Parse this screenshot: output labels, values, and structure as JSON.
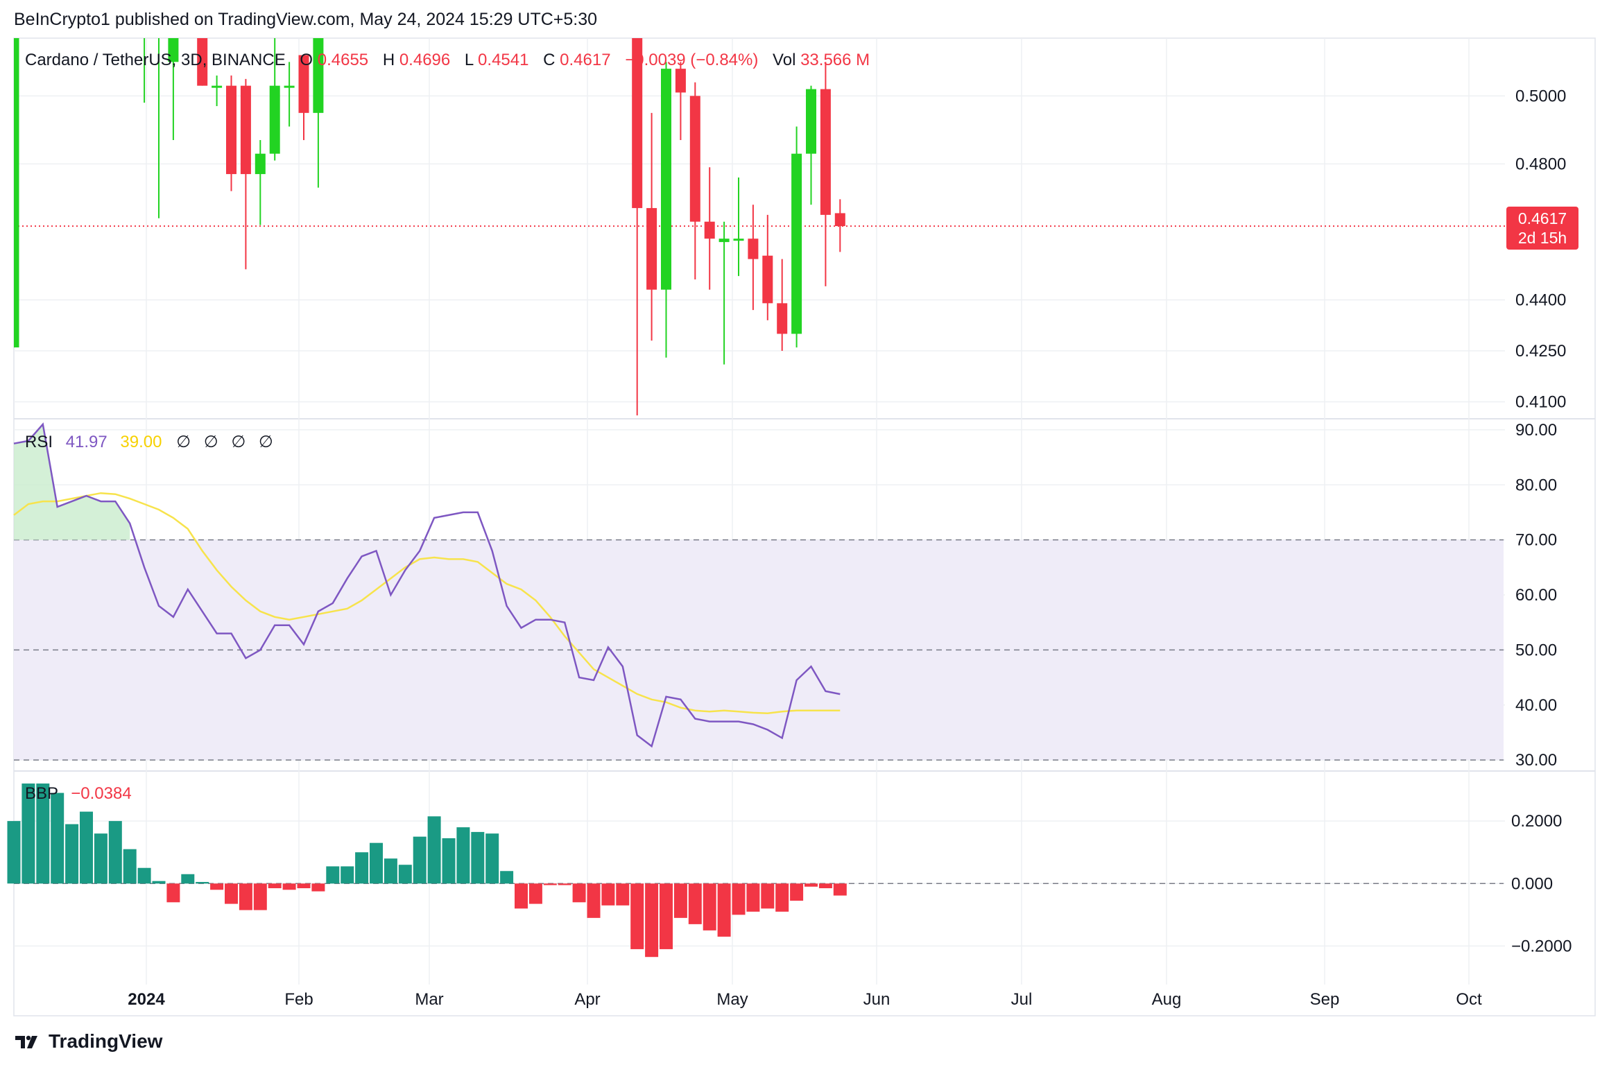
{
  "header": {
    "published_line": "BeInCrypto1 published on TradingView.com, May 24, 2024 15:29 UTC+5:30"
  },
  "legend": {
    "symbol": "Cardano / TetherUS, 3D, BINANCE",
    "o_label": "O",
    "o_value": "0.4655",
    "h_label": "H",
    "h_value": "0.4696",
    "l_label": "L",
    "l_value": "0.4541",
    "c_label": "C",
    "c_value": "0.4617",
    "change": "−0.0039 (−0.84%)",
    "vol_label": "Vol",
    "vol_value": "33.566 M"
  },
  "price_label": {
    "value": "0.4617",
    "countdown": "2d 15h"
  },
  "rsi_legend": {
    "name": "RSI",
    "value": "41.97",
    "ma_value": "39.00",
    "extras": [
      "∅",
      "∅",
      "∅",
      "∅"
    ]
  },
  "bbp_legend": {
    "name": "BBP",
    "value": "−0.0384"
  },
  "footer": {
    "brand": "TradingView"
  },
  "colors": {
    "up": "#22d322",
    "down": "#f23645",
    "rsi_line": "#7e57c2",
    "rsi_ma": "#f7e34c",
    "bbp_up": "#1a9a84",
    "bbp_down": "#f23645",
    "band_fill": "#efecf8",
    "grid": "#eef0f3"
  },
  "chart_data": [
    {
      "type": "candlestick",
      "title": "Cardano / TetherUS, 3D, BINANCE",
      "x_ticks": [
        "2024",
        "Feb",
        "Mar",
        "Apr",
        "May",
        "Jun",
        "Jul",
        "Aug",
        "Sep",
        "Oct"
      ],
      "y_ticks": [
        "0.5000",
        "0.4800",
        "0.4400",
        "0.4250",
        "0.4100"
      ],
      "ylim": [
        0.405,
        0.517
      ],
      "current_price": 0.4617,
      "candles": [
        {
          "x": 0,
          "o": 0.426,
          "h": 0.52,
          "l": 0.426,
          "c": 0.52
        },
        {
          "x": 9,
          "o": 0.52,
          "h": 0.52,
          "l": 0.498,
          "c": 0.52
        },
        {
          "x": 10,
          "o": 0.52,
          "h": 0.52,
          "l": 0.464,
          "c": 0.52
        },
        {
          "x": 11,
          "o": 0.51,
          "h": 0.52,
          "l": 0.487,
          "c": 0.52
        },
        {
          "x": 13,
          "o": 0.52,
          "h": 0.52,
          "l": 0.503,
          "c": 0.503
        },
        {
          "x": 14,
          "o": 0.503,
          "h": 0.506,
          "l": 0.497,
          "c": 0.503
        },
        {
          "x": 15,
          "o": 0.503,
          "h": 0.506,
          "l": 0.472,
          "c": 0.477
        },
        {
          "x": 16,
          "o": 0.503,
          "h": 0.505,
          "l": 0.449,
          "c": 0.477
        },
        {
          "x": 17,
          "o": 0.477,
          "h": 0.487,
          "l": 0.462,
          "c": 0.483
        },
        {
          "x": 18,
          "o": 0.483,
          "h": 0.519,
          "l": 0.481,
          "c": 0.503
        },
        {
          "x": 19,
          "o": 0.503,
          "h": 0.51,
          "l": 0.491,
          "c": 0.503
        },
        {
          "x": 20,
          "o": 0.512,
          "h": 0.512,
          "l": 0.487,
          "c": 0.495
        },
        {
          "x": 21,
          "o": 0.495,
          "h": 0.52,
          "l": 0.473,
          "c": 0.52
        },
        {
          "x": 43,
          "o": 0.52,
          "h": 0.52,
          "l": 0.406,
          "c": 0.467
        },
        {
          "x": 44,
          "o": 0.467,
          "h": 0.495,
          "l": 0.428,
          "c": 0.443
        },
        {
          "x": 45,
          "o": 0.443,
          "h": 0.51,
          "l": 0.423,
          "c": 0.508
        },
        {
          "x": 46,
          "o": 0.508,
          "h": 0.51,
          "l": 0.487,
          "c": 0.501
        },
        {
          "x": 47,
          "o": 0.5,
          "h": 0.504,
          "l": 0.446,
          "c": 0.463
        },
        {
          "x": 48,
          "o": 0.463,
          "h": 0.479,
          "l": 0.443,
          "c": 0.458
        },
        {
          "x": 49,
          "o": 0.457,
          "h": 0.463,
          "l": 0.421,
          "c": 0.458
        },
        {
          "x": 50,
          "o": 0.458,
          "h": 0.476,
          "l": 0.447,
          "c": 0.458
        },
        {
          "x": 51,
          "o": 0.458,
          "h": 0.468,
          "l": 0.437,
          "c": 0.452
        },
        {
          "x": 52,
          "o": 0.453,
          "h": 0.465,
          "l": 0.434,
          "c": 0.439
        },
        {
          "x": 53,
          "o": 0.439,
          "h": 0.452,
          "l": 0.425,
          "c": 0.43
        },
        {
          "x": 54,
          "o": 0.43,
          "h": 0.491,
          "l": 0.426,
          "c": 0.483
        },
        {
          "x": 55,
          "o": 0.483,
          "h": 0.503,
          "l": 0.468,
          "c": 0.502
        },
        {
          "x": 56,
          "o": 0.502,
          "h": 0.51,
          "l": 0.444,
          "c": 0.465
        },
        {
          "x": 57,
          "o": 0.4655,
          "h": 0.4696,
          "l": 0.4541,
          "c": 0.4617
        }
      ]
    },
    {
      "type": "line",
      "title": "RSI",
      "y_ticks": [
        "90.00",
        "80.00",
        "70.00",
        "60.00",
        "50.00",
        "40.00",
        "30.00"
      ],
      "ylim": [
        28,
        92
      ],
      "band": [
        30,
        70
      ],
      "reference_lines": [
        70,
        50,
        30
      ],
      "series": [
        {
          "name": "RSI",
          "x": [
            0,
            1,
            2,
            3,
            4,
            5,
            6,
            7,
            8,
            9,
            10,
            11,
            12,
            13,
            14,
            15,
            16,
            17,
            18,
            19,
            20,
            21,
            22,
            23,
            24,
            25,
            26,
            27,
            28,
            29,
            30,
            31,
            32,
            33,
            34,
            35,
            36,
            37,
            38,
            39,
            40,
            41,
            42,
            43,
            44,
            45,
            46,
            47,
            48,
            49,
            50,
            51,
            52,
            53,
            54,
            55,
            56,
            57
          ],
          "values": [
            87.5,
            88,
            91,
            76,
            77,
            78,
            77,
            77,
            73,
            65,
            58,
            56,
            61,
            57,
            53,
            53,
            48.5,
            50,
            54.5,
            54.5,
            51,
            57,
            58.5,
            63,
            67,
            68,
            60,
            64.5,
            68,
            74,
            74.5,
            75,
            75,
            68,
            58,
            54,
            55.5,
            55.5,
            55,
            45,
            44.5,
            50.5,
            47,
            34.5,
            32.5,
            41.5,
            41,
            37.5,
            37,
            37,
            37,
            36.5,
            35.5,
            34,
            44.5,
            47,
            42.5,
            41.97
          ]
        },
        {
          "name": "RSI-based MA",
          "x": [
            0,
            1,
            2,
            3,
            4,
            5,
            6,
            7,
            8,
            9,
            10,
            11,
            12,
            13,
            14,
            15,
            16,
            17,
            18,
            19,
            20,
            21,
            22,
            23,
            24,
            25,
            26,
            27,
            28,
            29,
            30,
            31,
            32,
            33,
            34,
            35,
            36,
            37,
            38,
            39,
            40,
            41,
            42,
            43,
            44,
            45,
            46,
            47,
            48,
            49,
            50,
            51,
            52,
            53,
            54,
            55,
            56,
            57
          ],
          "values": [
            74.5,
            76.5,
            77,
            77,
            77.5,
            78,
            78.5,
            78.3,
            77.5,
            76.5,
            75.5,
            74,
            72,
            68,
            64.5,
            61.5,
            59,
            57,
            56,
            55.5,
            56,
            56.5,
            57,
            57.5,
            59,
            61,
            63,
            65,
            66.5,
            66.8,
            66.5,
            66.5,
            66,
            64,
            62,
            61,
            59,
            56,
            52.5,
            49.5,
            46.5,
            45,
            43.5,
            42,
            41,
            40.5,
            39.5,
            39,
            38.8,
            39,
            38.8,
            38.6,
            38.5,
            38.8,
            39,
            39,
            39,
            39.0
          ]
        }
      ]
    },
    {
      "type": "bar",
      "title": "BBP",
      "y_ticks": [
        "0.2000",
        "0.000",
        "−0.2000"
      ],
      "ylim": [
        -0.29,
        0.36
      ],
      "x": [
        0,
        1,
        2,
        3,
        4,
        5,
        6,
        7,
        8,
        9,
        10,
        11,
        12,
        13,
        14,
        15,
        16,
        17,
        18,
        19,
        20,
        21,
        22,
        23,
        24,
        25,
        26,
        27,
        28,
        29,
        30,
        31,
        32,
        33,
        34,
        35,
        36,
        37,
        38,
        39,
        40,
        41,
        42,
        43,
        44,
        45,
        46,
        47,
        48,
        49,
        50,
        51,
        52,
        53,
        54,
        55,
        56,
        57
      ],
      "values": [
        0.2,
        0.32,
        0.32,
        0.29,
        0.19,
        0.23,
        0.16,
        0.2,
        0.11,
        0.05,
        0.008,
        -0.06,
        0.03,
        0.005,
        -0.02,
        -0.065,
        -0.085,
        -0.085,
        -0.015,
        -0.02,
        -0.015,
        -0.025,
        0.055,
        0.055,
        0.1,
        0.13,
        0.08,
        0.06,
        0.15,
        0.215,
        0.145,
        0.18,
        0.165,
        0.16,
        0.04,
        -0.08,
        -0.065,
        -0.005,
        -0.005,
        -0.06,
        -0.11,
        -0.07,
        -0.07,
        -0.21,
        -0.235,
        -0.21,
        -0.11,
        -0.13,
        -0.15,
        -0.17,
        -0.1,
        -0.09,
        -0.08,
        -0.09,
        -0.055,
        -0.01,
        -0.015,
        -0.0384
      ]
    }
  ]
}
